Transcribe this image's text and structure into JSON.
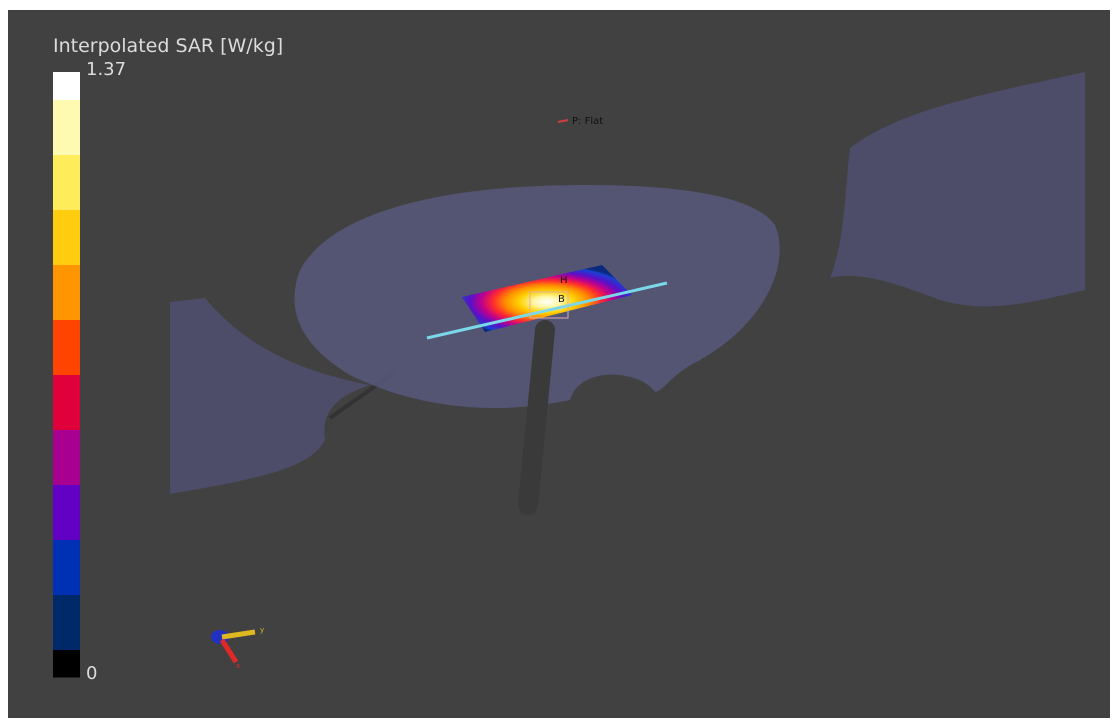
{
  "colorbar": {
    "title": "Interpolated SAR [W/kg]",
    "max": 1.37,
    "min": 0,
    "colors": [
      "#ffffff",
      "#fffab2",
      "#ffec5a",
      "#ffcc10",
      "#ff9500",
      "#ff4400",
      "#e0003c",
      "#a80090",
      "#6200c4",
      "#0030b4",
      "#00296a",
      "#000000"
    ]
  },
  "scene": {
    "probe_label": "P: Flat",
    "marker_h": "H",
    "marker_b": "B",
    "axis_y": "y",
    "axis_x": "x"
  }
}
